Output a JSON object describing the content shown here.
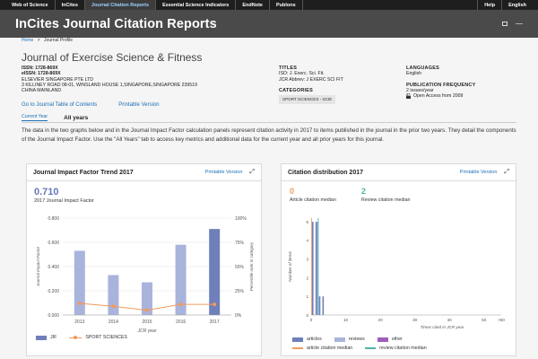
{
  "topnav": {
    "items": [
      "Web of Science",
      "InCites",
      "Journal Citation Reports",
      "Essential Science Indicators",
      "EndNote",
      "Publons"
    ],
    "right": [
      "Help",
      "English"
    ]
  },
  "app_title": "InCites Journal Citation Reports",
  "breadcrumb": {
    "home": "Home",
    "sep": ">",
    "current": "Journal Profile"
  },
  "journal": {
    "title": "Journal of Exercise Science & Fitness",
    "issn": "ISSN: 1728-869X",
    "eissn": "eISSN: 1728-869X",
    "publisher": "ELSEVIER SINGAPORE PTE LTD",
    "address": "3 KILLINEY ROAD 08-01, WINSLAND HOUSE 1,SINGAPORE,SINGAPORE 239519",
    "country": "CHINA MAINLAND",
    "toc_link": "Go to Journal Table of Contents",
    "print_link": "Printable Version",
    "titles_label": "TITLES",
    "iso": "ISO: J. Exerc. Sci. Fit.",
    "jcr_abbrev": "JCR Abbrev: J EXERC SCI FIT",
    "categories_label": "CATEGORIES",
    "category": "SPORT SCIENCES - SCIE",
    "languages_label": "LANGUAGES",
    "language": "English",
    "freq_label": "PUBLICATION FREQUENCY",
    "freq": "2 issues/year",
    "open_access": "Open Access from 2009"
  },
  "tabs": {
    "current": "Current Year",
    "all": "All years"
  },
  "description": "The data in the two graphs below and in the Journal Impact Factor calculation panels represent citation activity in 2017 to items published in the journal in the prior two years. They detail the components of the Journal Impact Factor. Use the \"All Years\" tab to access key metrics and additional data for the current year and all prior years for this journal.",
  "jif_panel": {
    "title": "Journal Impact Factor Trend 2017",
    "print": "Printable Version",
    "value": "0.710",
    "value_label": "2017 Journal Impact Factor"
  },
  "cite_panel": {
    "title": "Citation distribution 2017",
    "print": "Printable Version",
    "article_median": "0",
    "article_median_label": "Article citation median",
    "review_median": "2",
    "review_median_label": "Review citation median"
  },
  "colors": {
    "jif_bar": "#a9b4dc",
    "jif_bar_current": "#6e7fba",
    "sport_line": "#f19a5c",
    "article_bar": "#6e7fba",
    "review_bar": "#a9b4dc",
    "other_bar": "#9c5fb7",
    "article_median_line": "#f19a5c",
    "review_median_line": "#4fb3a4"
  },
  "chart_data": [
    {
      "type": "bar",
      "title": "Journal Impact Factor Trend 2017",
      "xlabel": "JCR year",
      "ylabel": "Journal Impact Factor",
      "y2label": "Percentile rank in category",
      "categories": [
        "2013",
        "2014",
        "2015",
        "2016",
        "2017"
      ],
      "ylim": [
        0,
        0.8
      ],
      "yticks": [
        "0.000",
        "0.200",
        "0.400",
        "0.600",
        "0.800"
      ],
      "y2lim": [
        0,
        100
      ],
      "y2ticks": [
        "0%",
        "25%",
        "50%",
        "75%",
        "100%"
      ],
      "series": [
        {
          "name": "JIF",
          "values": [
            0.53,
            0.33,
            0.27,
            0.58,
            0.71
          ]
        },
        {
          "name": "SPORT SCIENCES",
          "type": "line",
          "values": [
            12,
            9,
            5,
            11,
            11
          ]
        }
      ]
    },
    {
      "type": "bar",
      "title": "Citation distribution 2017",
      "xlabel": "Times cited in JCR year",
      "ylabel": "Number of items",
      "xticks": [
        "0",
        "10",
        "20",
        "30",
        "40",
        "50",
        "50"
      ],
      "xlim": [
        0,
        55
      ],
      "ylim": [
        0,
        5.2
      ],
      "yticks": [
        "0",
        "1",
        "2",
        "3",
        "4",
        "5"
      ],
      "series": [
        {
          "name": "articles",
          "values": [
            5,
            5,
            1,
            1
          ]
        },
        {
          "name": "reviews",
          "values": [
            0,
            5,
            0,
            0
          ]
        },
        {
          "name": "other",
          "values": [
            0,
            0,
            0,
            0
          ]
        }
      ],
      "x": [
        0,
        1,
        2,
        3
      ],
      "medians": {
        "article citation median": 0,
        "review citation median": 2
      }
    }
  ],
  "legend": {
    "jif": "JIF",
    "sport": "SPORT SCIENCES",
    "articles": "articles",
    "reviews": "reviews",
    "other": "other",
    "article_med": "article citation median",
    "review_med": "review citation median"
  }
}
